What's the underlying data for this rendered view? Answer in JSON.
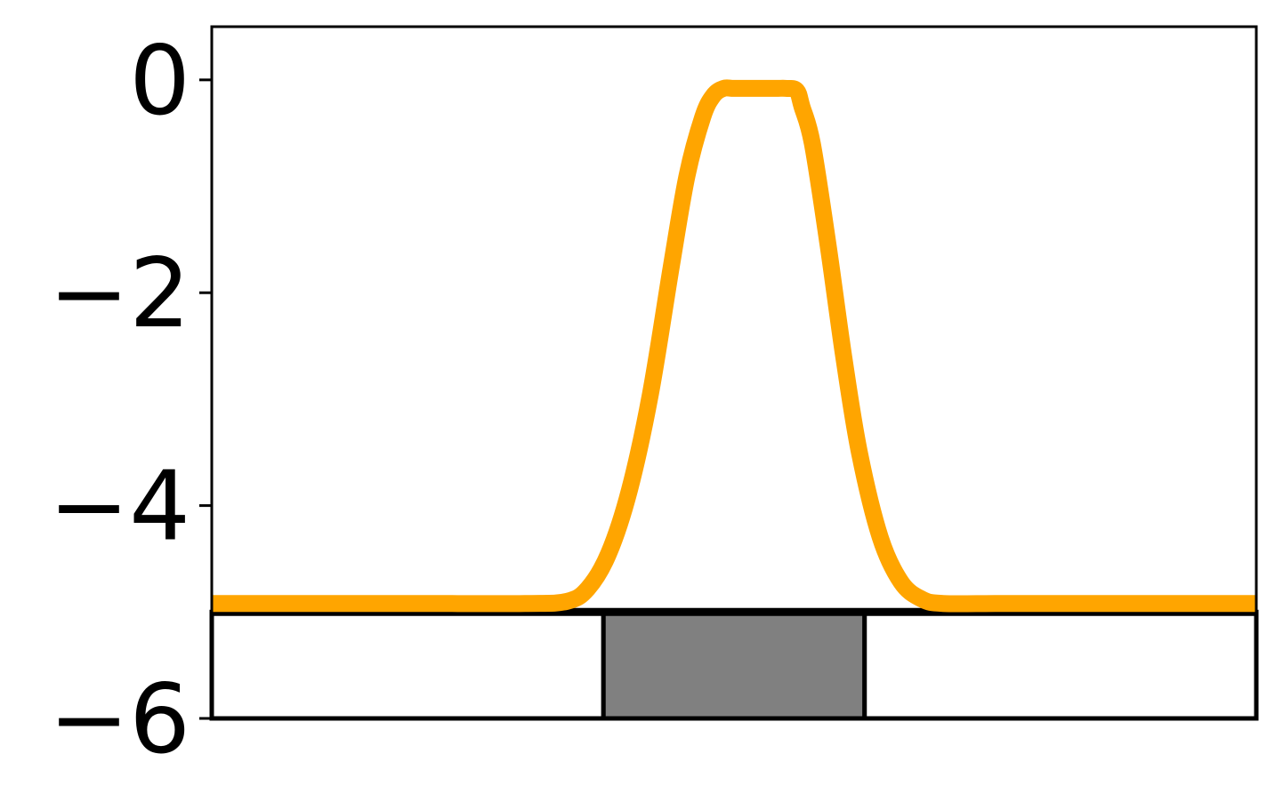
{
  "chart_data": {
    "type": "line",
    "title": "",
    "xlabel": "",
    "ylabel": "",
    "xlim": [
      0,
      1
    ],
    "ylim": [
      -6,
      0.5
    ],
    "y_ticks": [
      0,
      -2,
      -4,
      -6
    ],
    "y_tick_labels": [
      "0",
      "−2",
      "−4",
      "−6"
    ],
    "grid": false,
    "x_ticks_visible": false,
    "series": [
      {
        "color": "#FFA500",
        "x": [
          0.0,
          0.1,
          0.2,
          0.3,
          0.34,
          0.36,
          0.38,
          0.4,
          0.42,
          0.44,
          0.455,
          0.47,
          0.48,
          0.49,
          0.5,
          0.52,
          0.54,
          0.55,
          0.56,
          0.565,
          0.575,
          0.59,
          0.605,
          0.62,
          0.64,
          0.66,
          0.68,
          0.7,
          0.75,
          0.8,
          0.9,
          1.0
        ],
        "y": [
          -4.92,
          -4.92,
          -4.92,
          -4.92,
          -4.9,
          -4.78,
          -4.45,
          -3.85,
          -2.95,
          -1.75,
          -0.9,
          -0.35,
          -0.15,
          -0.08,
          -0.08,
          -0.08,
          -0.08,
          -0.08,
          -0.1,
          -0.25,
          -0.6,
          -1.55,
          -2.6,
          -3.5,
          -4.3,
          -4.72,
          -4.88,
          -4.92,
          -4.92,
          -4.92,
          -4.92,
          -4.92
        ]
      }
    ],
    "bottom_bar": {
      "y_range": [
        -6,
        -5
      ],
      "segments": [
        {
          "x0": 0.0,
          "x1": 0.375,
          "fill": "#FFFFFF"
        },
        {
          "x0": 0.375,
          "x1": 0.625,
          "fill": "#808080"
        },
        {
          "x0": 0.625,
          "x1": 1.0,
          "fill": "#FFFFFF"
        }
      ]
    }
  }
}
